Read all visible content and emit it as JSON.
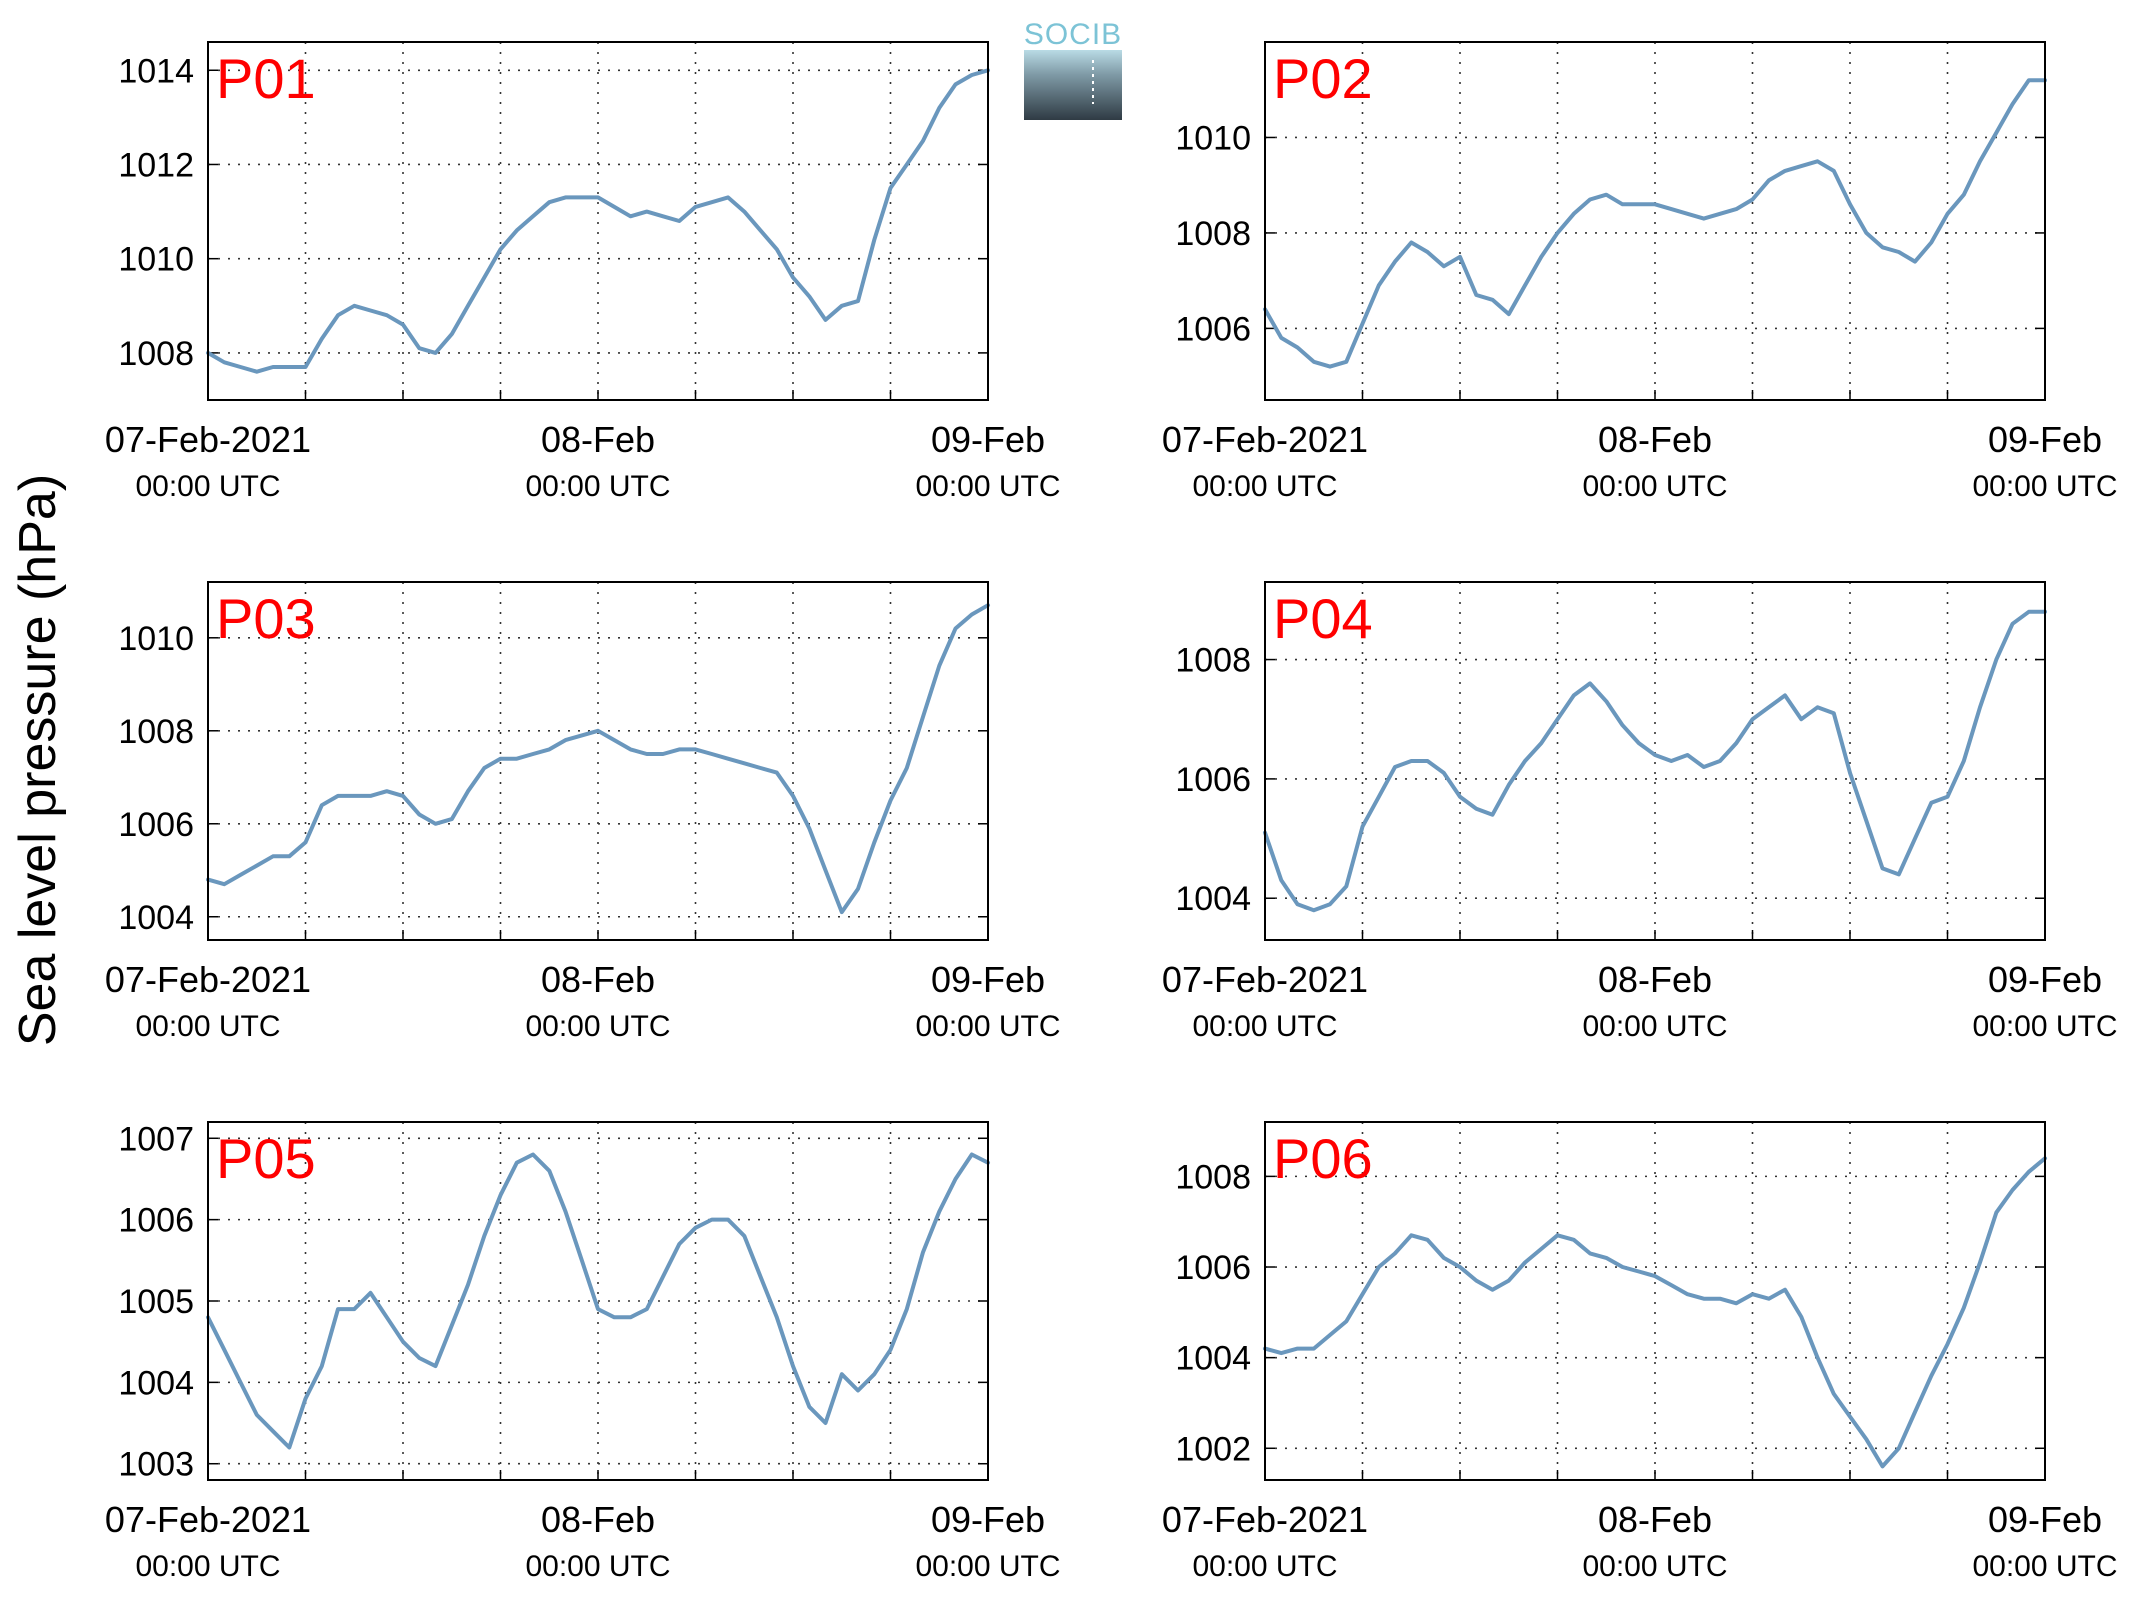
{
  "figure": {
    "ylabel": "Sea level pressure (hPa)",
    "logo_text": "SOCIB"
  },
  "colors": {
    "line": "#6a97bd",
    "label": "#ff0000",
    "logo_top": "#7cc3d6",
    "logo_bottom": "#2f3b44"
  },
  "chart_data": [
    {
      "type": "line",
      "title": "P01",
      "x_ticks": [
        {
          "t": 0,
          "label": "07-Feb-2021",
          "sub": "00:00 UTC"
        },
        {
          "t": 24,
          "label": "08-Feb",
          "sub": "00:00 UTC"
        },
        {
          "t": 48,
          "label": "09-Feb",
          "sub": "00:00 UTC"
        }
      ],
      "xlim": [
        0,
        48
      ],
      "ylim": [
        1007,
        1014.6
      ],
      "y_ticks": [
        1008,
        1010,
        1012,
        1014
      ],
      "series": [
        {
          "x": [
            0,
            1,
            2,
            3,
            4,
            5,
            6,
            7,
            8,
            9,
            10,
            11,
            12,
            13,
            14,
            15,
            16,
            17,
            18,
            19,
            20,
            21,
            22,
            23,
            24,
            25,
            26,
            27,
            28,
            29,
            30,
            31,
            32,
            33,
            34,
            35,
            36,
            37,
            38,
            39,
            40,
            41,
            42,
            43,
            44,
            45,
            46,
            47,
            48
          ],
          "y": [
            1008.0,
            1007.8,
            1007.7,
            1007.6,
            1007.7,
            1007.7,
            1007.7,
            1008.3,
            1008.8,
            1009.0,
            1008.9,
            1008.8,
            1008.6,
            1008.1,
            1008.0,
            1008.4,
            1009.0,
            1009.6,
            1010.2,
            1010.6,
            1010.9,
            1011.2,
            1011.3,
            1011.3,
            1011.3,
            1011.1,
            1010.9,
            1011.0,
            1010.9,
            1010.8,
            1011.1,
            1011.2,
            1011.3,
            1011.0,
            1010.6,
            1010.2,
            1009.6,
            1009.2,
            1008.7,
            1009.0,
            1009.1,
            1010.4,
            1011.5,
            1012.0,
            1012.5,
            1013.2,
            1013.7,
            1013.9,
            1014.0
          ]
        }
      ]
    },
    {
      "type": "line",
      "title": "P02",
      "x_ticks": [
        {
          "t": 0,
          "label": "07-Feb-2021",
          "sub": "00:00 UTC"
        },
        {
          "t": 24,
          "label": "08-Feb",
          "sub": "00:00 UTC"
        },
        {
          "t": 48,
          "label": "09-Feb",
          "sub": "00:00 UTC"
        }
      ],
      "xlim": [
        0,
        48
      ],
      "ylim": [
        1004.5,
        1012
      ],
      "y_ticks": [
        1006,
        1008,
        1010
      ],
      "series": [
        {
          "x": [
            0,
            1,
            2,
            3,
            4,
            5,
            6,
            7,
            8,
            9,
            10,
            11,
            12,
            13,
            14,
            15,
            16,
            17,
            18,
            19,
            20,
            21,
            22,
            23,
            24,
            25,
            26,
            27,
            28,
            29,
            30,
            31,
            32,
            33,
            34,
            35,
            36,
            37,
            38,
            39,
            40,
            41,
            42,
            43,
            44,
            45,
            46,
            47,
            48
          ],
          "y": [
            1006.4,
            1005.8,
            1005.6,
            1005.3,
            1005.2,
            1005.3,
            1006.1,
            1006.9,
            1007.4,
            1007.8,
            1007.6,
            1007.3,
            1007.5,
            1006.7,
            1006.6,
            1006.3,
            1006.9,
            1007.5,
            1008.0,
            1008.4,
            1008.7,
            1008.8,
            1008.6,
            1008.6,
            1008.6,
            1008.5,
            1008.4,
            1008.3,
            1008.4,
            1008.5,
            1008.7,
            1009.1,
            1009.3,
            1009.4,
            1009.5,
            1009.3,
            1008.6,
            1008.0,
            1007.7,
            1007.6,
            1007.4,
            1007.8,
            1008.4,
            1008.8,
            1009.5,
            1010.1,
            1010.7,
            1011.2,
            1011.2
          ]
        }
      ]
    },
    {
      "type": "line",
      "title": "P03",
      "x_ticks": [
        {
          "t": 0,
          "label": "07-Feb-2021",
          "sub": "00:00 UTC"
        },
        {
          "t": 24,
          "label": "08-Feb",
          "sub": "00:00 UTC"
        },
        {
          "t": 48,
          "label": "09-Feb",
          "sub": "00:00 UTC"
        }
      ],
      "xlim": [
        0,
        48
      ],
      "ylim": [
        1003.5,
        1011.2
      ],
      "y_ticks": [
        1004,
        1006,
        1008,
        1010
      ],
      "series": [
        {
          "x": [
            0,
            1,
            2,
            3,
            4,
            5,
            6,
            7,
            8,
            9,
            10,
            11,
            12,
            13,
            14,
            15,
            16,
            17,
            18,
            19,
            20,
            21,
            22,
            23,
            24,
            25,
            26,
            27,
            28,
            29,
            30,
            31,
            32,
            33,
            34,
            35,
            36,
            37,
            38,
            39,
            40,
            41,
            42,
            43,
            44,
            45,
            46,
            47,
            48
          ],
          "y": [
            1004.8,
            1004.7,
            1004.9,
            1005.1,
            1005.3,
            1005.3,
            1005.6,
            1006.4,
            1006.6,
            1006.6,
            1006.6,
            1006.7,
            1006.6,
            1006.2,
            1006.0,
            1006.1,
            1006.7,
            1007.2,
            1007.4,
            1007.4,
            1007.5,
            1007.6,
            1007.8,
            1007.9,
            1008.0,
            1007.8,
            1007.6,
            1007.5,
            1007.5,
            1007.6,
            1007.6,
            1007.5,
            1007.4,
            1007.3,
            1007.2,
            1007.1,
            1006.6,
            1005.9,
            1005.0,
            1004.1,
            1004.6,
            1005.6,
            1006.5,
            1007.2,
            1008.3,
            1009.4,
            1010.2,
            1010.5,
            1010.7
          ]
        }
      ]
    },
    {
      "type": "line",
      "title": "P04",
      "x_ticks": [
        {
          "t": 0,
          "label": "07-Feb-2021",
          "sub": "00:00 UTC"
        },
        {
          "t": 24,
          "label": "08-Feb",
          "sub": "00:00 UTC"
        },
        {
          "t": 48,
          "label": "09-Feb",
          "sub": "00:00 UTC"
        }
      ],
      "xlim": [
        0,
        48
      ],
      "ylim": [
        1003.3,
        1009.3
      ],
      "y_ticks": [
        1004,
        1006,
        1008
      ],
      "series": [
        {
          "x": [
            0,
            1,
            2,
            3,
            4,
            5,
            6,
            7,
            8,
            9,
            10,
            11,
            12,
            13,
            14,
            15,
            16,
            17,
            18,
            19,
            20,
            21,
            22,
            23,
            24,
            25,
            26,
            27,
            28,
            29,
            30,
            31,
            32,
            33,
            34,
            35,
            36,
            37,
            38,
            39,
            40,
            41,
            42,
            43,
            44,
            45,
            46,
            47,
            48
          ],
          "y": [
            1005.1,
            1004.3,
            1003.9,
            1003.8,
            1003.9,
            1004.2,
            1005.2,
            1005.7,
            1006.2,
            1006.3,
            1006.3,
            1006.1,
            1005.7,
            1005.5,
            1005.4,
            1005.9,
            1006.3,
            1006.6,
            1007.0,
            1007.4,
            1007.6,
            1007.3,
            1006.9,
            1006.6,
            1006.4,
            1006.3,
            1006.4,
            1006.2,
            1006.3,
            1006.6,
            1007.0,
            1007.2,
            1007.4,
            1007.0,
            1007.2,
            1007.1,
            1006.1,
            1005.3,
            1004.5,
            1004.4,
            1005.0,
            1005.6,
            1005.7,
            1006.3,
            1007.2,
            1008.0,
            1008.6,
            1008.8,
            1008.8
          ]
        }
      ]
    },
    {
      "type": "line",
      "title": "P05",
      "x_ticks": [
        {
          "t": 0,
          "label": "07-Feb-2021",
          "sub": "00:00 UTC"
        },
        {
          "t": 24,
          "label": "08-Feb",
          "sub": "00:00 UTC"
        },
        {
          "t": 48,
          "label": "09-Feb",
          "sub": "00:00 UTC"
        }
      ],
      "xlim": [
        0,
        48
      ],
      "ylim": [
        1002.8,
        1007.2
      ],
      "y_ticks": [
        1003,
        1004,
        1005,
        1006,
        1007
      ],
      "series": [
        {
          "x": [
            0,
            1,
            2,
            3,
            4,
            5,
            6,
            7,
            8,
            9,
            10,
            11,
            12,
            13,
            14,
            15,
            16,
            17,
            18,
            19,
            20,
            21,
            22,
            23,
            24,
            25,
            26,
            27,
            28,
            29,
            30,
            31,
            32,
            33,
            34,
            35,
            36,
            37,
            38,
            39,
            40,
            41,
            42,
            43,
            44,
            45,
            46,
            47,
            48
          ],
          "y": [
            1004.8,
            1004.4,
            1004.0,
            1003.6,
            1003.4,
            1003.2,
            1003.8,
            1004.2,
            1004.9,
            1004.9,
            1005.1,
            1004.8,
            1004.5,
            1004.3,
            1004.2,
            1004.7,
            1005.2,
            1005.8,
            1006.3,
            1006.7,
            1006.8,
            1006.6,
            1006.1,
            1005.5,
            1004.9,
            1004.8,
            1004.8,
            1004.9,
            1005.3,
            1005.7,
            1005.9,
            1006.0,
            1006.0,
            1005.8,
            1005.3,
            1004.8,
            1004.2,
            1003.7,
            1003.5,
            1004.1,
            1003.9,
            1004.1,
            1004.4,
            1004.9,
            1005.6,
            1006.1,
            1006.5,
            1006.8,
            1006.7
          ]
        }
      ]
    },
    {
      "type": "line",
      "title": "P06",
      "x_ticks": [
        {
          "t": 0,
          "label": "07-Feb-2021",
          "sub": "00:00 UTC"
        },
        {
          "t": 24,
          "label": "08-Feb",
          "sub": "00:00 UTC"
        },
        {
          "t": 48,
          "label": "09-Feb",
          "sub": "00:00 UTC"
        }
      ],
      "xlim": [
        0,
        48
      ],
      "ylim": [
        1001.3,
        1009.2
      ],
      "y_ticks": [
        1002,
        1004,
        1006,
        1008
      ],
      "series": [
        {
          "x": [
            0,
            1,
            2,
            3,
            4,
            5,
            6,
            7,
            8,
            9,
            10,
            11,
            12,
            13,
            14,
            15,
            16,
            17,
            18,
            19,
            20,
            21,
            22,
            23,
            24,
            25,
            26,
            27,
            28,
            29,
            30,
            31,
            32,
            33,
            34,
            35,
            36,
            37,
            38,
            39,
            40,
            41,
            42,
            43,
            44,
            45,
            46,
            47,
            48
          ],
          "y": [
            1004.2,
            1004.1,
            1004.2,
            1004.2,
            1004.5,
            1004.8,
            1005.4,
            1006.0,
            1006.3,
            1006.7,
            1006.6,
            1006.2,
            1006.0,
            1005.7,
            1005.5,
            1005.7,
            1006.1,
            1006.4,
            1006.7,
            1006.6,
            1006.3,
            1006.2,
            1006.0,
            1005.9,
            1005.8,
            1005.6,
            1005.4,
            1005.3,
            1005.3,
            1005.2,
            1005.4,
            1005.3,
            1005.5,
            1004.9,
            1004.0,
            1003.2,
            1002.7,
            1002.2,
            1001.6,
            1002.0,
            1002.8,
            1003.6,
            1004.3,
            1005.1,
            1006.1,
            1007.2,
            1007.7,
            1008.1,
            1008.4
          ]
        }
      ]
    }
  ]
}
